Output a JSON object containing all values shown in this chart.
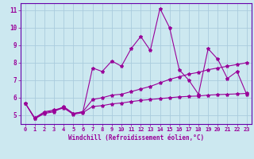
{
  "title": "",
  "xlabel": "Windchill (Refroidissement éolien,°C)",
  "ylabel": "",
  "xlim": [
    -0.5,
    23.5
  ],
  "ylim": [
    4.5,
    11.4
  ],
  "xticks": [
    0,
    1,
    2,
    3,
    4,
    5,
    6,
    7,
    8,
    9,
    10,
    11,
    12,
    13,
    14,
    15,
    16,
    17,
    18,
    19,
    20,
    21,
    22,
    23
  ],
  "yticks": [
    5,
    6,
    7,
    8,
    9,
    10,
    11
  ],
  "bg_color": "#cce8f0",
  "line_color": "#990099",
  "grid_color": "#aaccdd",
  "line1_x": [
    0,
    1,
    2,
    3,
    4,
    5,
    6,
    7,
    8,
    9,
    10,
    11,
    12,
    13,
    14,
    15,
    16,
    17,
    18,
    19,
    20,
    21,
    22,
    23
  ],
  "line1_y": [
    5.7,
    4.8,
    5.1,
    5.2,
    5.5,
    5.1,
    5.2,
    7.7,
    7.5,
    8.1,
    7.8,
    8.8,
    9.5,
    8.7,
    11.1,
    10.0,
    7.6,
    7.0,
    6.2,
    8.8,
    8.2,
    7.1,
    7.5,
    6.2
  ],
  "line2_x": [
    0,
    1,
    2,
    3,
    4,
    5,
    6,
    7,
    8,
    9,
    10,
    11,
    12,
    13,
    14,
    15,
    16,
    17,
    18,
    19,
    20,
    21,
    22,
    23
  ],
  "line2_y": [
    5.7,
    4.85,
    5.2,
    5.3,
    5.45,
    5.1,
    5.2,
    5.9,
    6.0,
    6.15,
    6.2,
    6.35,
    6.5,
    6.65,
    6.85,
    7.05,
    7.2,
    7.35,
    7.45,
    7.6,
    7.7,
    7.8,
    7.9,
    8.0
  ],
  "line3_x": [
    0,
    1,
    2,
    3,
    4,
    5,
    6,
    7,
    8,
    9,
    10,
    11,
    12,
    13,
    14,
    15,
    16,
    17,
    18,
    19,
    20,
    21,
    22,
    23
  ],
  "line3_y": [
    5.7,
    4.82,
    5.15,
    5.25,
    5.42,
    5.05,
    5.15,
    5.5,
    5.55,
    5.65,
    5.7,
    5.78,
    5.85,
    5.9,
    5.95,
    6.0,
    6.05,
    6.08,
    6.1,
    6.15,
    6.18,
    6.2,
    6.22,
    6.25
  ]
}
